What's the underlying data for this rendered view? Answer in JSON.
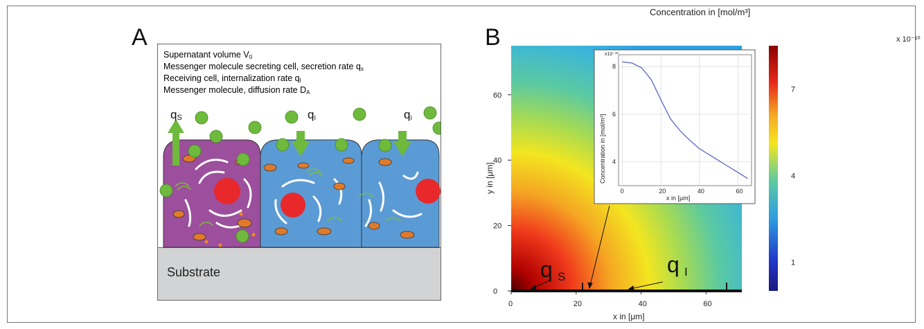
{
  "panel_a": {
    "letter": "A",
    "legend": [
      {
        "text": "Supernatant volume V",
        "sub": "0",
        "color": "#111111"
      },
      {
        "text": "Messenger molecule secreting cell, secretion rate q",
        "sub": "s",
        "color": "#a0509a"
      },
      {
        "text": "Receiving cell, internalization rate q",
        "sub": "I",
        "color": "#4f94d3"
      },
      {
        "text": "Messenger molecule, diffusion rate D",
        "sub": "A",
        "color": "#7bbf3a"
      }
    ],
    "q_labels": [
      "q",
      "q",
      "q"
    ],
    "q_subs": [
      "S",
      "I",
      "I"
    ],
    "substrate": "Substrate",
    "colors": {
      "secreting_cell": "#9c4f9c",
      "receiving_cell": "#5b9bd5",
      "molecule": "#6fba3c",
      "nucleus": "#e8282b",
      "mitochondria": "#e07a2a",
      "substrate": "#d2d3d4"
    }
  },
  "panel_b": {
    "letter": "B",
    "colorbar_title": "Concentration in [mol/m³]",
    "colorbar_exp": "x 10⁻¹⁰",
    "colorbar_ticks": [
      "7",
      "4",
      "1"
    ],
    "colorbar_tick_values": [
      7,
      4,
      1
    ],
    "colorbar_range": [
      0,
      8.5
    ],
    "x_ticks": [
      "0",
      "20",
      "40",
      "60"
    ],
    "y_ticks": [
      "0",
      "20",
      "40",
      "60"
    ],
    "xlabel": "x in [μm]",
    "ylabel": "y in [μm]",
    "q_labels": [
      "q",
      "q"
    ],
    "q_subs": [
      "S",
      "I"
    ]
  },
  "chart_data": {
    "type": "line",
    "title": "",
    "xlabel": "x in [μm]",
    "ylabel": "Concentration in [mol/m³]",
    "y_exponent": "x10⁻¹⁰",
    "xlim": [
      -2,
      67
    ],
    "ylim": [
      3,
      8.5
    ],
    "x_ticks": [
      "0",
      "20",
      "40",
      "60"
    ],
    "y_ticks": [
      "4",
      "6",
      "8"
    ],
    "grid": true,
    "series": [
      {
        "x": [
          0,
          5,
          10,
          15,
          20,
          25,
          30,
          35,
          40,
          45,
          50,
          55,
          60,
          65
        ],
        "values": [
          8.2,
          8.15,
          7.95,
          7.45,
          6.6,
          5.8,
          5.3,
          4.9,
          4.55,
          4.3,
          4.05,
          3.8,
          3.55,
          3.3
        ]
      }
    ]
  }
}
